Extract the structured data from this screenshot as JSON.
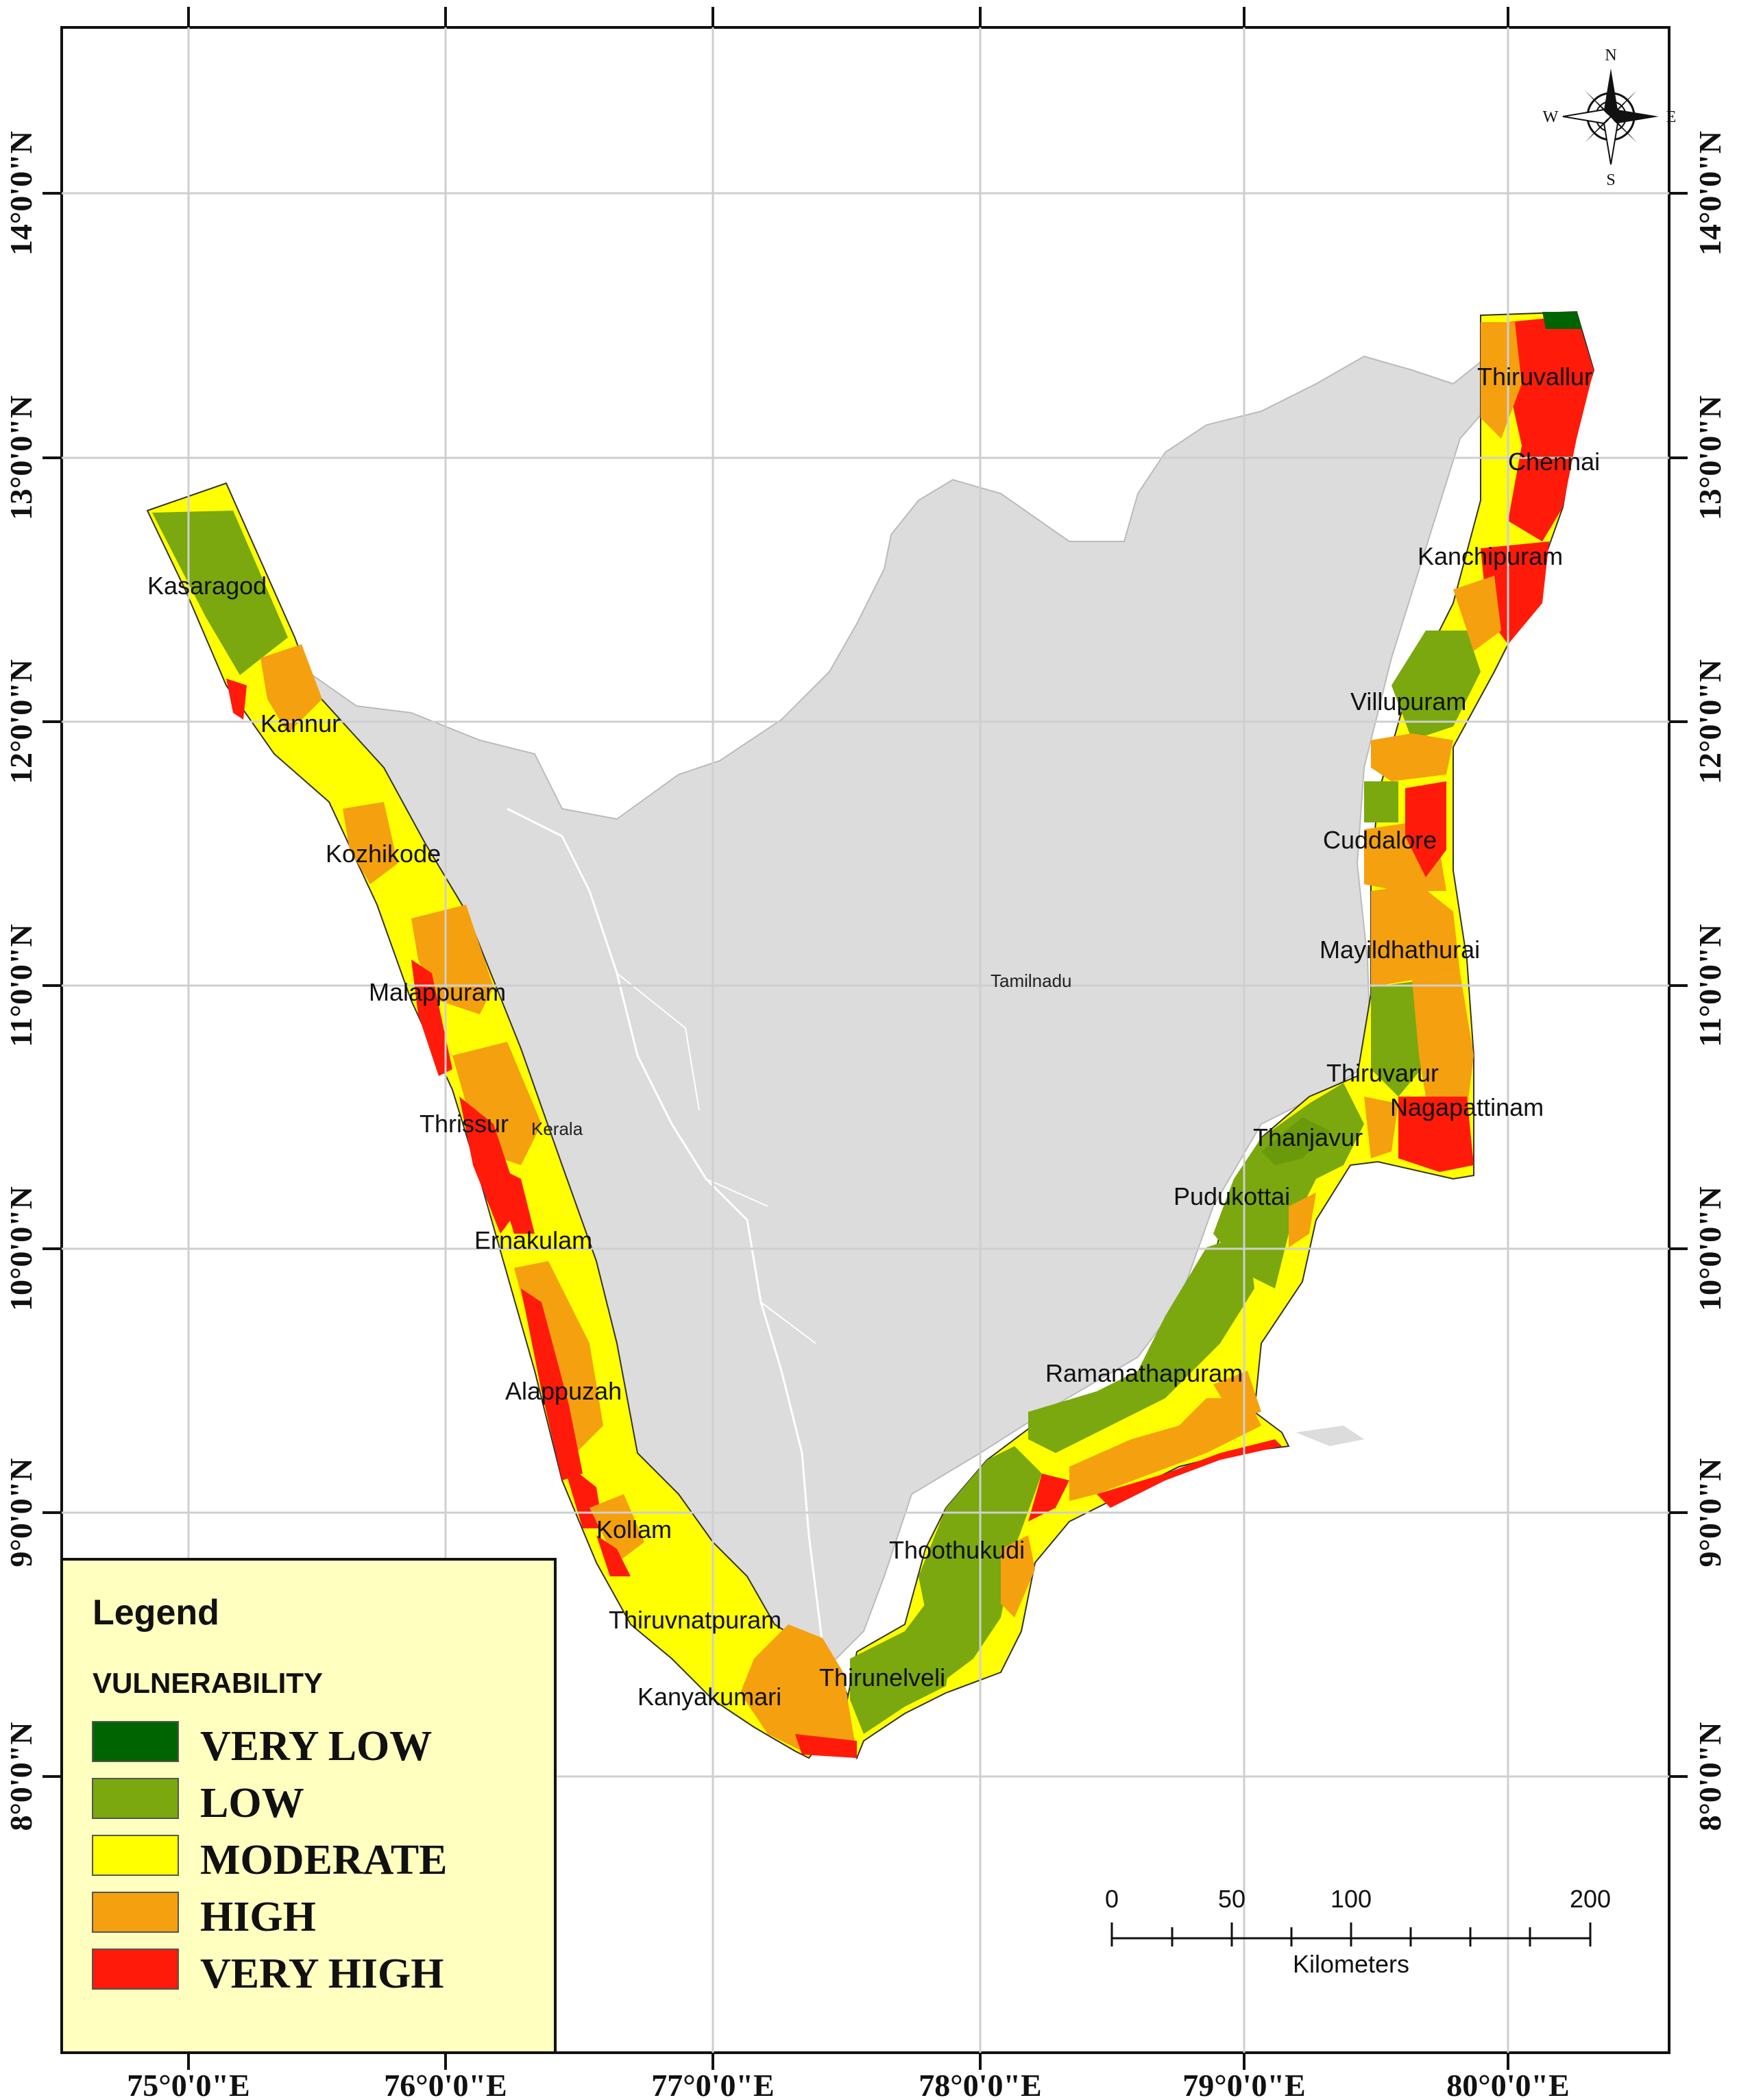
{
  "colors": {
    "very_low": "#006400",
    "low": "#7aa80e",
    "moderate": "#ffff00",
    "high": "#f5a00f",
    "very_high": "#ff1a0a",
    "land": "#dcdcdc",
    "legend_bg": "#ffffc0"
  },
  "axes": {
    "longitude_ticks": [
      "75°0'0\"E",
      "76°0'0\"E",
      "77°0'0\"E",
      "78°0'0\"E",
      "79°0'0\"E",
      "80°0'0\"E"
    ],
    "latitude_ticks": [
      "14°0'0\"N",
      "13°0'0\"N",
      "12°0'0\"N",
      "11°0'0\"N",
      "10°0'0\"N",
      "9°0'0\"N",
      "8°0'0\"N"
    ]
  },
  "districts": {
    "kasaragod": "Kasaragod",
    "kannur": "Kannur",
    "kozhikode": "Kozhikode",
    "malappuram": "Malappuram",
    "thrissur": "Thrissur",
    "ernakulam": "Ernakulam",
    "alappuzah": "Alappuzah",
    "kollam": "Kollam",
    "thiruvnatpuram": "Thiruvnatpuram",
    "kanyakumari": "Kanyakumari",
    "thirunelveli": "Thirunelveli",
    "thoothukudi": "Thoothukudi",
    "ramanathapuram": "Ramanathapuram",
    "pudukottai": "Pudukottai",
    "thanjavur": "Thanjavur",
    "thiruvarur": "Thiruvarur",
    "nagapattinam": "Nagapattinam",
    "mayildhathurai": "Mayildhathurai",
    "cuddalore": "Cuddalore",
    "villupuram": "Villupuram",
    "kanchipuram": "Kanchipuram",
    "chennai": "Chennai",
    "thiruvallur": "Thiruvallur"
  },
  "states": {
    "kerala": "Kerala",
    "tamilnadu": "Tamilnadu"
  },
  "legend": {
    "title": "Legend",
    "subtitle": "VULNERABILITY",
    "items": [
      "VERY LOW",
      "LOW",
      "MODERATE",
      "HIGH",
      "VERY HIGH"
    ]
  },
  "scale_bar": {
    "labels": [
      "0",
      "50",
      "100",
      "200"
    ],
    "unit": "Kilometers"
  },
  "compass": {
    "n": "N",
    "s": "S",
    "e": "E",
    "w": "W"
  }
}
